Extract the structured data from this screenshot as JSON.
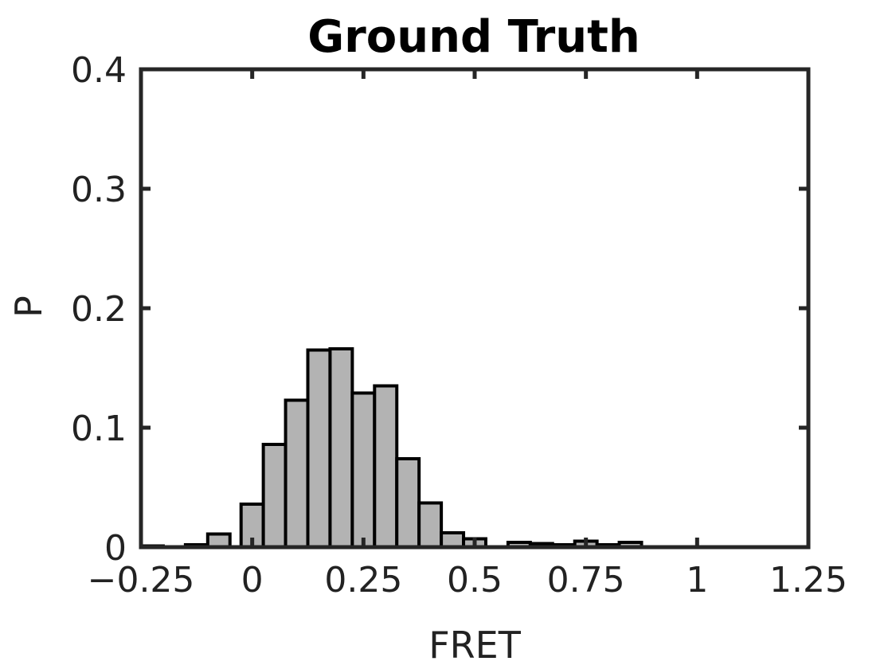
{
  "chart_data": {
    "type": "bar",
    "title": "Ground Truth",
    "xlabel": "FRET",
    "ylabel": "P",
    "xlim": [
      -0.25,
      1.25
    ],
    "ylim": [
      0,
      0.4
    ],
    "xticks": [
      "−0.25",
      "0",
      "0.25",
      "0.5",
      "0.75",
      "1",
      "1.25"
    ],
    "xtick_values": [
      -0.25,
      0,
      0.25,
      0.5,
      0.75,
      1,
      1.25
    ],
    "yticks": [
      "0",
      "0.1",
      "0.2",
      "0.3",
      "0.4"
    ],
    "ytick_values": [
      0,
      0.1,
      0.2,
      0.3,
      0.4
    ],
    "bin_width": 0.05,
    "bar_color": "#b3b3b3",
    "edge_color": "#000000",
    "grid": false,
    "legend": "none",
    "x": [
      -0.225,
      -0.125,
      -0.075,
      0.0,
      0.05,
      0.1,
      0.15,
      0.2,
      0.25,
      0.3,
      0.35,
      0.4,
      0.45,
      0.5,
      0.6,
      0.65,
      0.7,
      0.75,
      0.8,
      0.85
    ],
    "values": [
      0.001,
      0.002,
      0.011,
      0.036,
      0.086,
      0.123,
      0.165,
      0.166,
      0.129,
      0.135,
      0.074,
      0.037,
      0.012,
      0.007,
      0.004,
      0.003,
      0.002,
      0.005,
      0.002,
      0.004
    ]
  }
}
